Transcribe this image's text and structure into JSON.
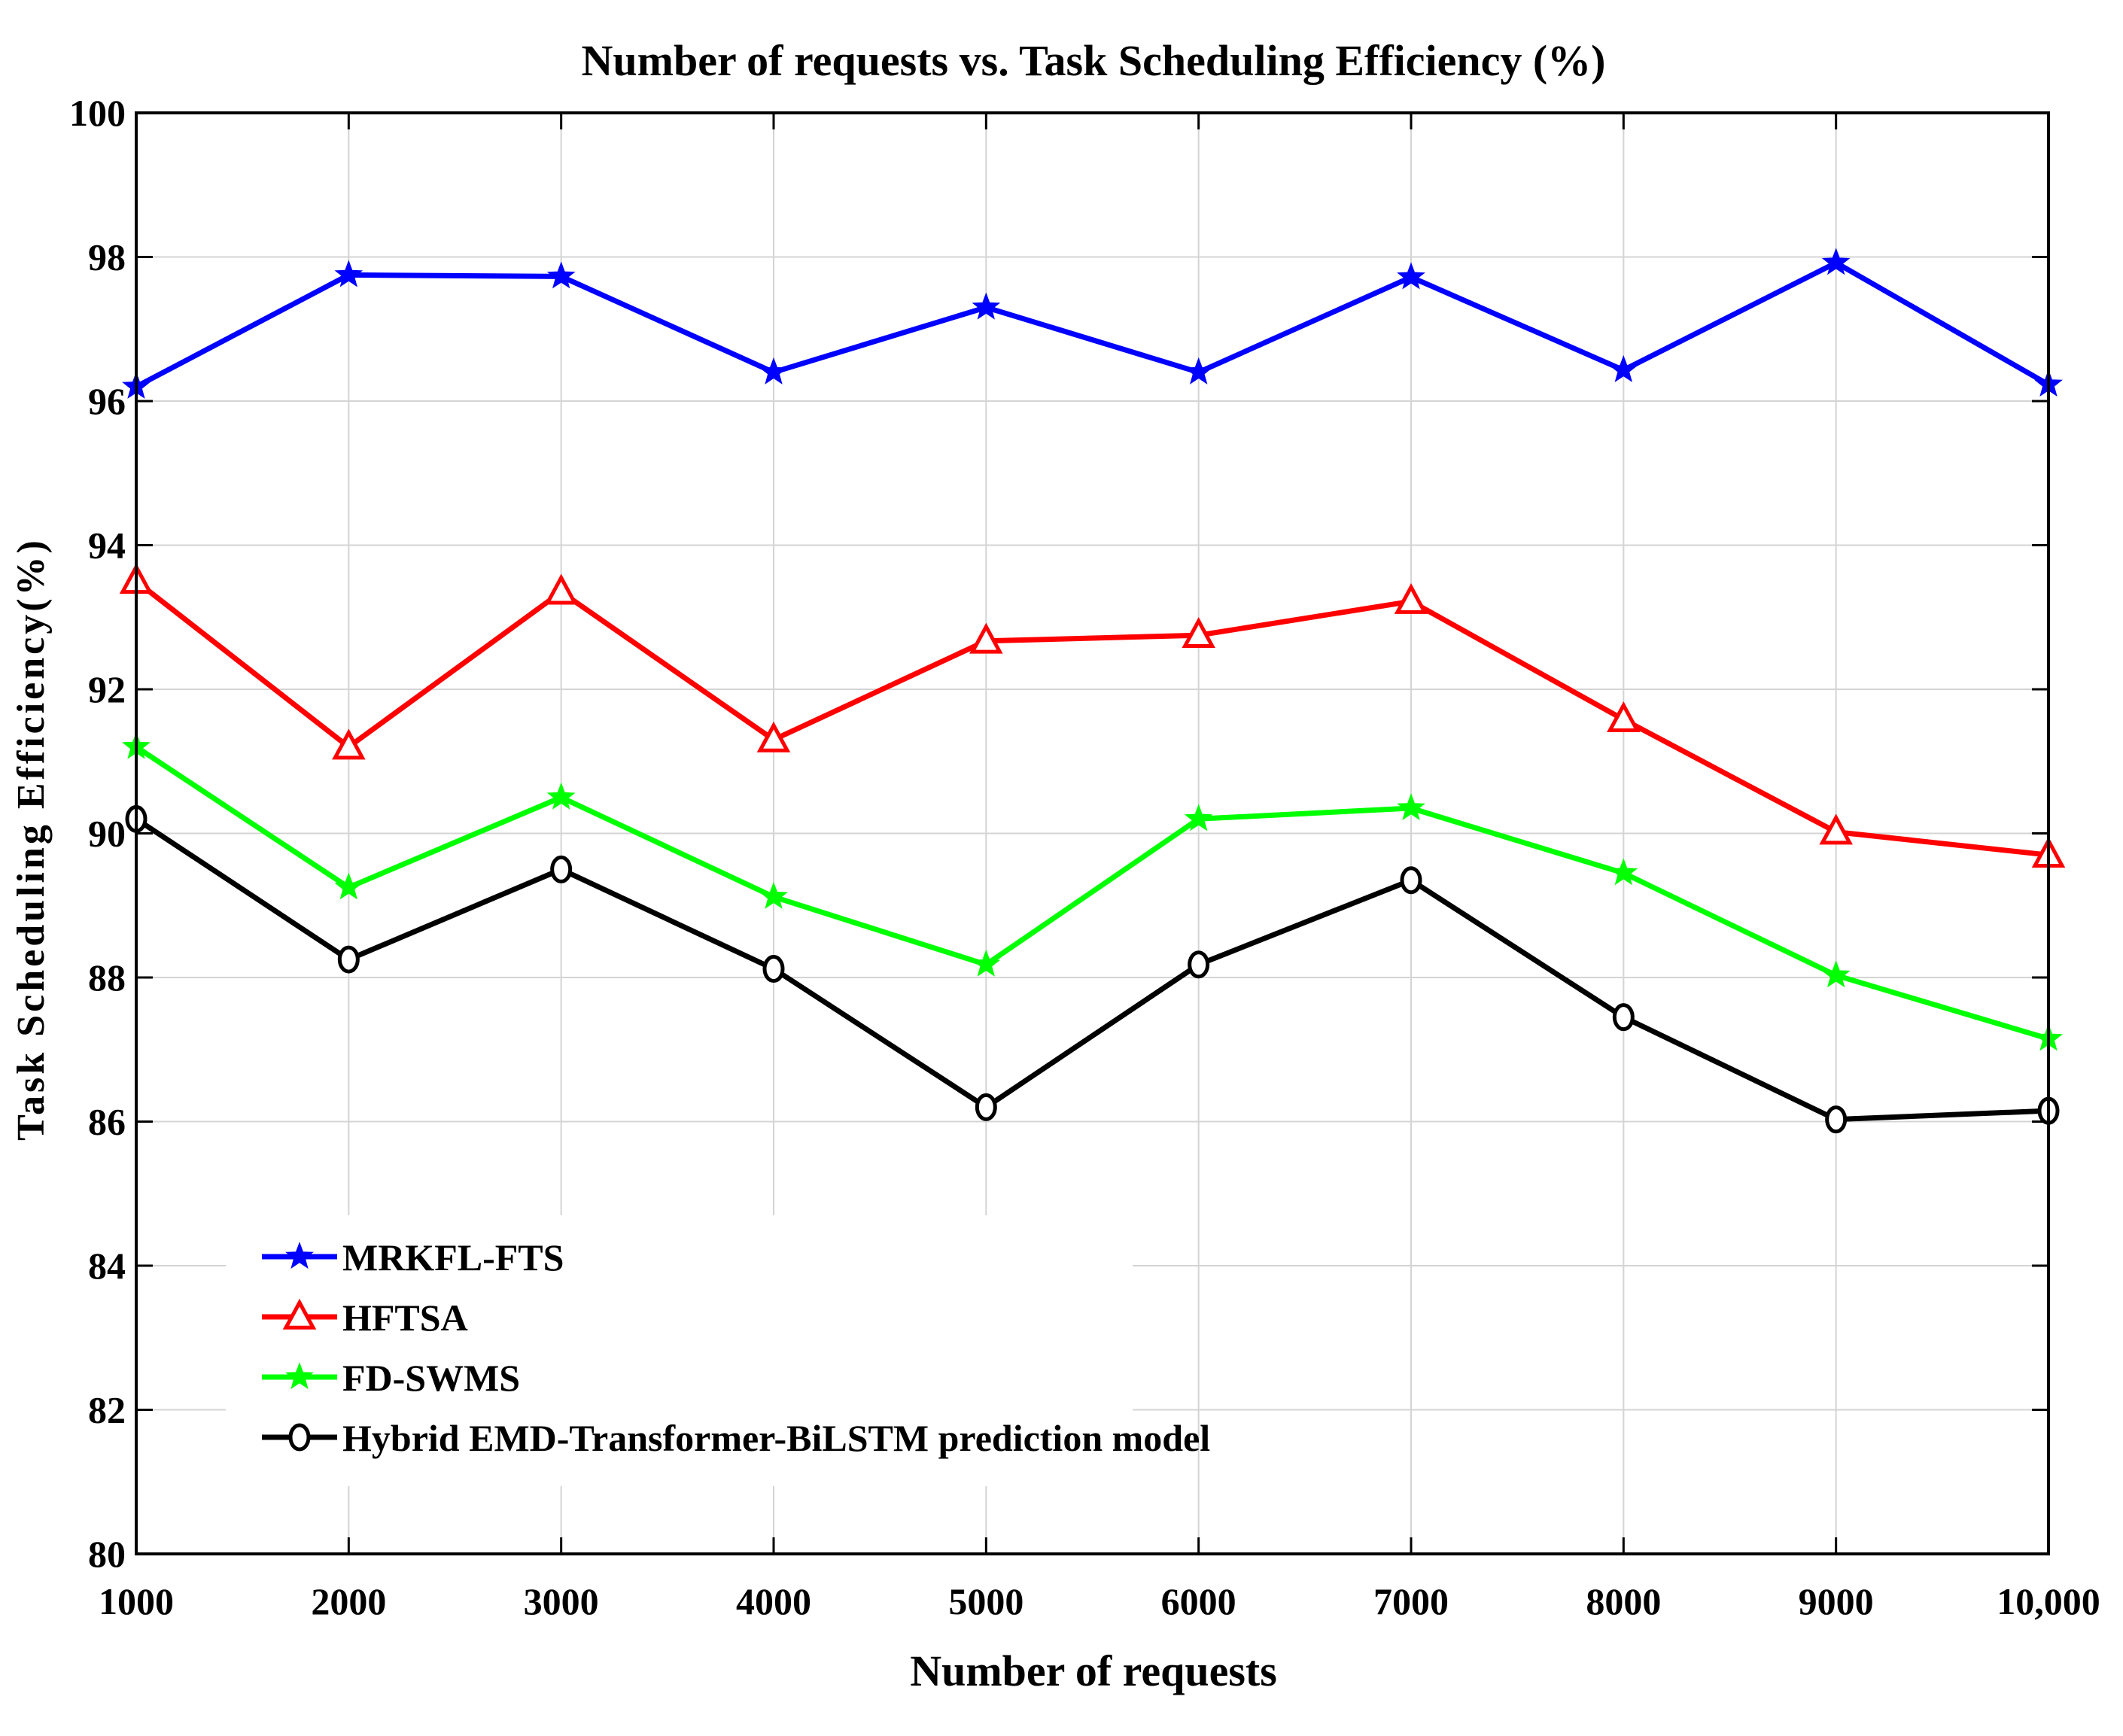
{
  "chart_data": {
    "type": "line",
    "title": "Number of requests vs. Task Scheduling Efficiency (%)",
    "xlabel": "Number of requests",
    "ylabel": "Task Scheduling Efficiency(%)",
    "x": [
      1000,
      2000,
      3000,
      4000,
      5000,
      6000,
      7000,
      8000,
      9000,
      10000
    ],
    "x_tick_labels": [
      "1000",
      "2000",
      "3000",
      "4000",
      "5000",
      "6000",
      "7000",
      "8000",
      "9000",
      "10,000"
    ],
    "ylim": [
      80,
      100
    ],
    "y_ticks": [
      80,
      82,
      84,
      86,
      88,
      90,
      92,
      94,
      96,
      98,
      100
    ],
    "grid": true,
    "legend_position": "bottom-left",
    "series": [
      {
        "name": "MRKFL-FTS",
        "color": "#0000ff",
        "marker": "star",
        "values": [
          96.2,
          97.75,
          97.73,
          96.4,
          97.3,
          96.4,
          97.72,
          96.43,
          97.92,
          96.23
        ]
      },
      {
        "name": "HFTSA",
        "color": "#ff0000",
        "marker": "triangle",
        "values": [
          93.5,
          91.2,
          93.35,
          91.3,
          92.67,
          92.75,
          93.22,
          91.58,
          90.02,
          89.7
        ]
      },
      {
        "name": "FD-SWMS",
        "color": "#00ff00",
        "marker": "star",
        "values": [
          91.2,
          89.25,
          90.5,
          89.12,
          88.18,
          90.2,
          90.35,
          89.45,
          88.03,
          87.15
        ]
      },
      {
        "name": "Hybrid EMD-Transformer-BiLSTM prediction model",
        "color": "#000000",
        "marker": "diamond",
        "values": [
          90.2,
          88.25,
          89.5,
          88.12,
          86.2,
          88.18,
          89.35,
          87.45,
          86.03,
          86.15
        ]
      }
    ]
  }
}
